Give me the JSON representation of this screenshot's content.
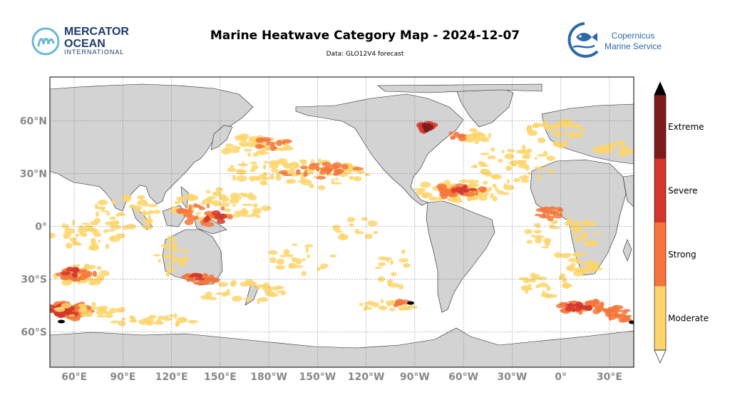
{
  "title": "Marine Heatwave Category Map - 2024-12-07",
  "subtitle": "Data: GLO12V4 forecast",
  "logos": {
    "left": {
      "line1": "MERCATOR",
      "line2": "OCEAN",
      "line3": "INTERNATIONAL",
      "icon": "mercator-m-icon"
    },
    "right": {
      "line1": "Copernicus",
      "line2": "Marine Service",
      "icon": "copernicus-fish-icon"
    }
  },
  "colors": {
    "ocean": "#ffffff",
    "land": "#d3d3d3",
    "moderate": "#fdd56b",
    "strong": "#f6753a",
    "severe": "#d4362b",
    "extreme": "#7d1b1b",
    "overflow": "#000000"
  },
  "map": {
    "projection": "plate-carree",
    "central_longitude": -150,
    "lon_range": [
      -315,
      45
    ],
    "lat_range": [
      -80,
      85
    ],
    "grid": true
  },
  "axes": {
    "lon_ticks": [
      "60°E",
      "90°E",
      "120°E",
      "150°E",
      "180°W",
      "150°W",
      "120°W",
      "90°W",
      "60°W",
      "30°W",
      "0°",
      "30°E"
    ],
    "lat_ticks": [
      "60°N",
      "30°N",
      "0°",
      "30°S",
      "60°S"
    ]
  },
  "colorbar": {
    "categories": [
      "Moderate",
      "Strong",
      "Severe",
      "Extreme"
    ],
    "extend": "both"
  }
}
